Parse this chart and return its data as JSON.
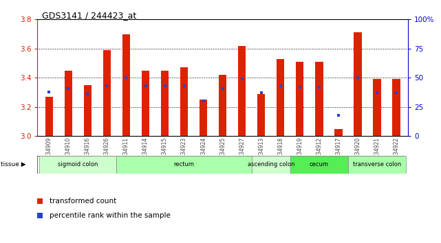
{
  "title": "GDS3141 / 244423_at",
  "samples": [
    "GSM234909",
    "GSM234910",
    "GSM234916",
    "GSM234926",
    "GSM234911",
    "GSM234914",
    "GSM234915",
    "GSM234923",
    "GSM234924",
    "GSM234925",
    "GSM234927",
    "GSM234913",
    "GSM234918",
    "GSM234919",
    "GSM234912",
    "GSM234917",
    "GSM234920",
    "GSM234921",
    "GSM234922"
  ],
  "transformed_count": [
    3.27,
    3.45,
    3.35,
    3.59,
    3.7,
    3.45,
    3.45,
    3.47,
    3.25,
    3.42,
    3.62,
    3.29,
    3.53,
    3.51,
    3.51,
    3.05,
    3.71,
    3.39,
    3.39
  ],
  "percentile_rank": [
    38,
    41,
    36,
    43,
    50,
    43,
    43,
    43,
    30,
    41,
    49,
    37,
    43,
    42,
    42,
    18,
    50,
    37,
    37
  ],
  "ymin": 3.0,
  "ymax": 3.8,
  "y2min": 0,
  "y2max": 100,
  "yticks": [
    3.0,
    3.2,
    3.4,
    3.6,
    3.8
  ],
  "y2ticks": [
    0,
    25,
    50,
    75,
    100
  ],
  "bar_color": "#dd2200",
  "blue_color": "#2244cc",
  "tissue_groups": [
    {
      "label": "sigmoid colon",
      "start": 0,
      "end": 4,
      "color": "#ccffcc"
    },
    {
      "label": "rectum",
      "start": 4,
      "end": 11,
      "color": "#aaffaa"
    },
    {
      "label": "ascending colon",
      "start": 11,
      "end": 13,
      "color": "#ccffcc"
    },
    {
      "label": "cecum",
      "start": 13,
      "end": 16,
      "color": "#55ee55"
    },
    {
      "label": "transverse colon",
      "start": 16,
      "end": 19,
      "color": "#aaffaa"
    }
  ],
  "legend_red_label": "transformed count",
  "legend_blue_label": "percentile rank within the sample",
  "left_label_color": "#cc2200",
  "right_label_color": "#0000cc",
  "grid_dotted_at": [
    3.2,
    3.4,
    3.6
  ],
  "bar_width": 0.4
}
